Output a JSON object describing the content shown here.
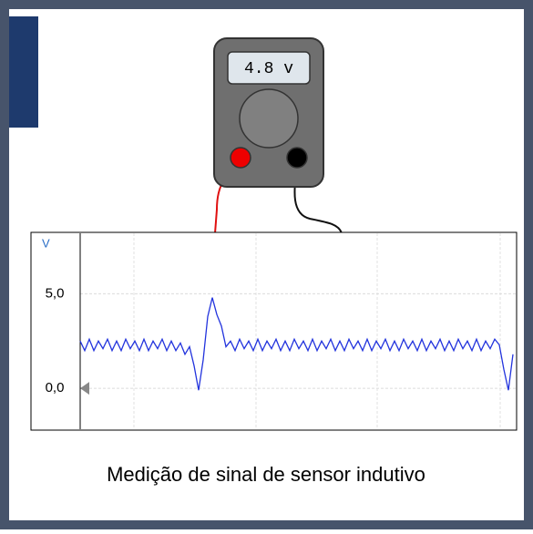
{
  "meter": {
    "reading": "4.8 v"
  },
  "chart_data": {
    "type": "line",
    "y_label": "V",
    "ylim": [
      -2.16,
      8.2
    ],
    "yticks": [
      {
        "value": 0,
        "label": "0,0"
      },
      {
        "value": 5,
        "label": "5,0"
      }
    ],
    "grid": true,
    "series": [
      {
        "color": "#2233dd",
        "values": [
          2.5,
          2.0,
          2.6,
          2.0,
          2.5,
          2.1,
          2.6,
          2.0,
          2.5,
          2.0,
          2.6,
          2.1,
          2.5,
          2.0,
          2.6,
          2.0,
          2.5,
          2.1,
          2.6,
          2.0,
          2.5,
          2.0,
          2.4,
          1.8,
          2.2,
          1.2,
          -0.1,
          1.5,
          3.8,
          4.8,
          3.9,
          3.3,
          2.2,
          2.5,
          2.0,
          2.6,
          2.1,
          2.5,
          2.0,
          2.6,
          2.0,
          2.5,
          2.1,
          2.6,
          2.0,
          2.5,
          2.0,
          2.6,
          2.1,
          2.5,
          2.0,
          2.6,
          2.0,
          2.5,
          2.1,
          2.6,
          2.0,
          2.5,
          2.0,
          2.6,
          2.1,
          2.5,
          2.0,
          2.6,
          2.0,
          2.5,
          2.1,
          2.6,
          2.0,
          2.5,
          2.0,
          2.6,
          2.1,
          2.5,
          2.0,
          2.6,
          2.0,
          2.5,
          2.1,
          2.6,
          2.0,
          2.5,
          2.0,
          2.6,
          2.1,
          2.5,
          2.0,
          2.6,
          2.0,
          2.5,
          2.1,
          2.6,
          2.3,
          1.0,
          -0.1,
          1.8
        ]
      }
    ]
  },
  "caption": "Medição de sinal de sensor indutivo"
}
